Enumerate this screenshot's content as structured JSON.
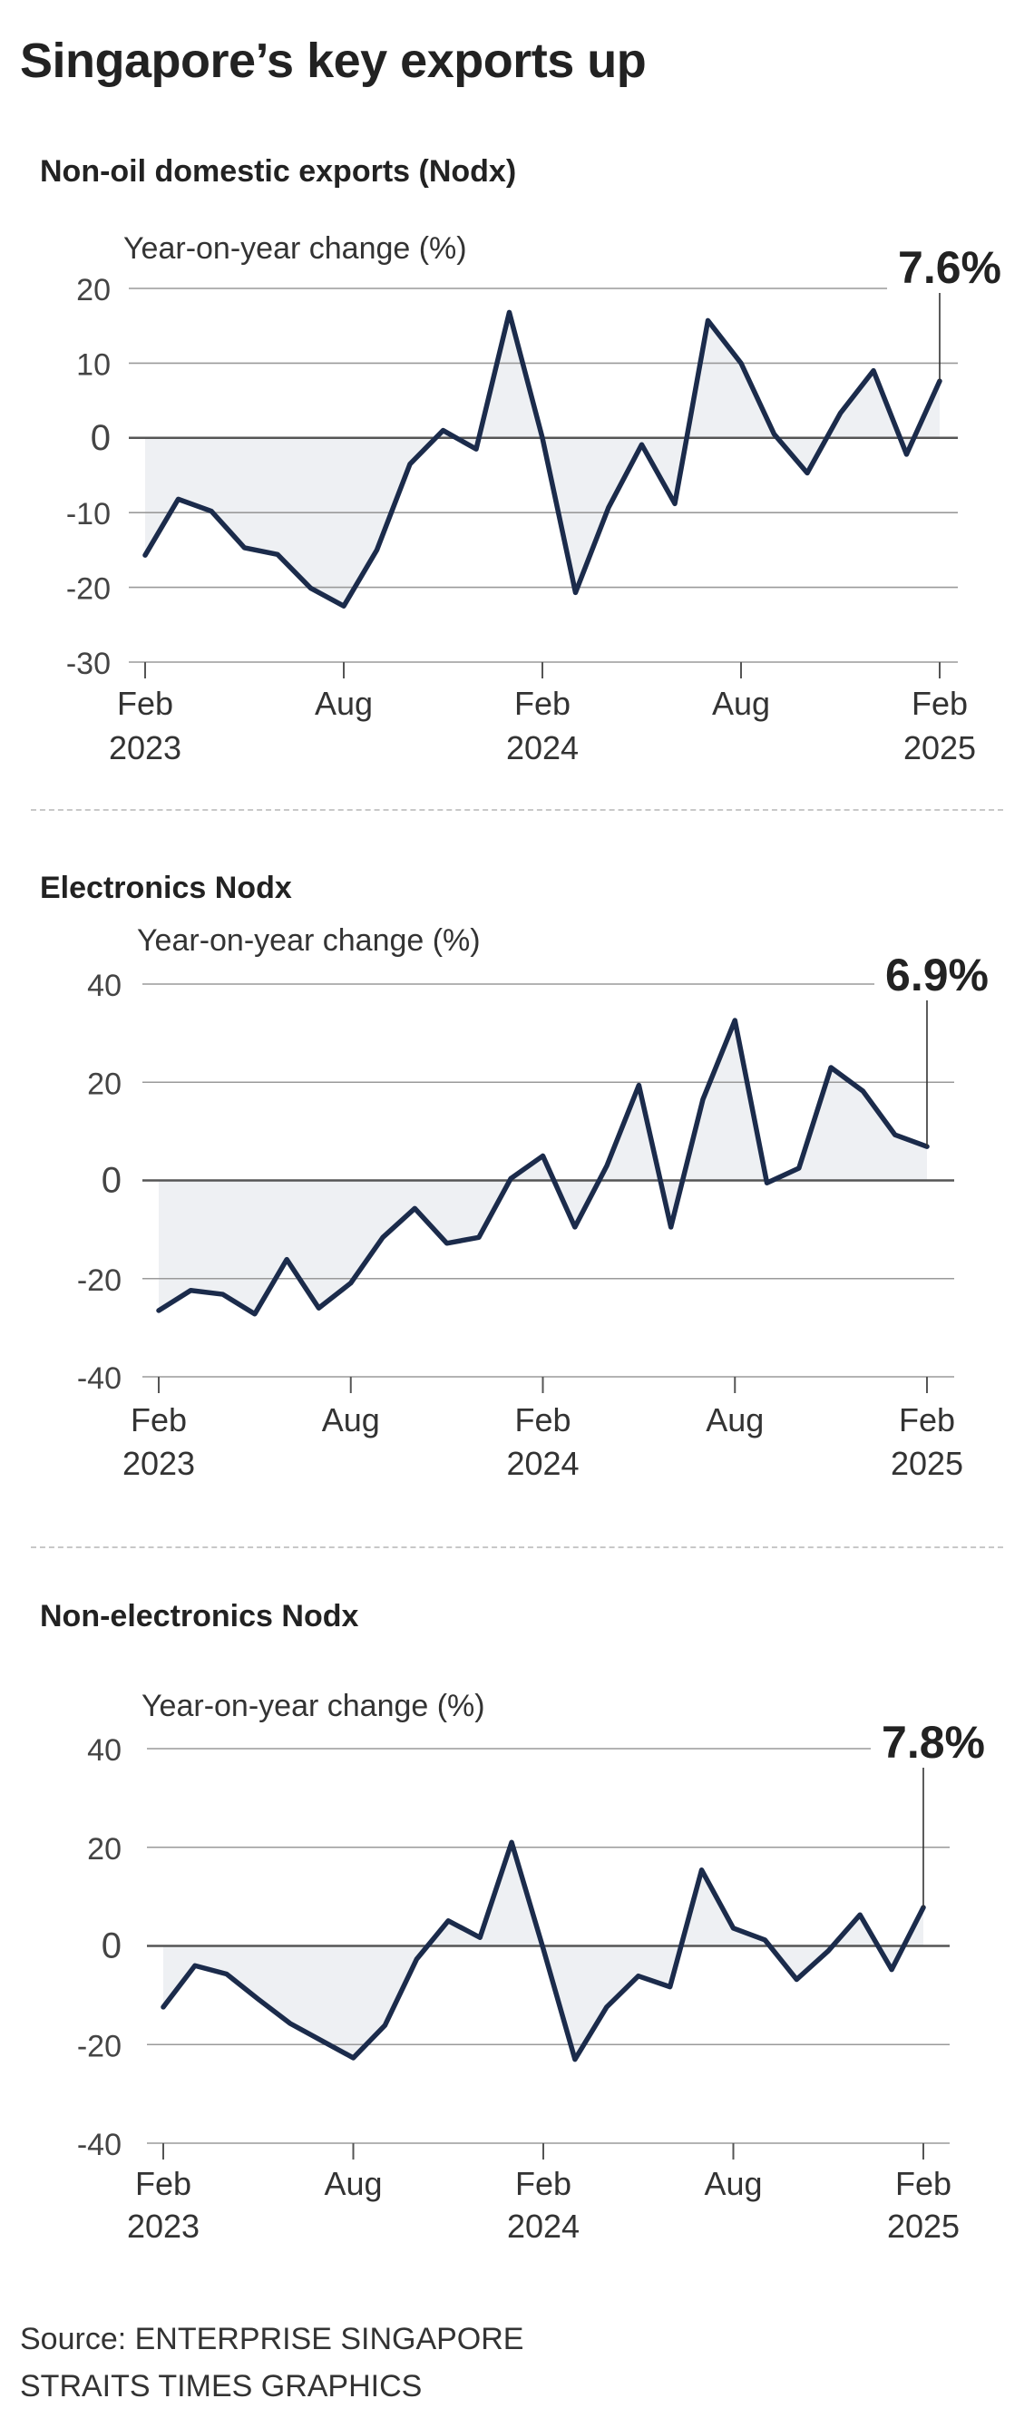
{
  "title": "Singapore’s key exports up",
  "source_line1": "Source: ENTERPRISE SINGAPORE",
  "source_line2": "STRAITS TIMES GRAPHICS",
  "colors": {
    "line": "#1b2b4b",
    "fill": "#eef0f3",
    "grid": "#9a9a9a",
    "zero": "#555555",
    "text": "#333333"
  },
  "chart_data": [
    {
      "type": "line",
      "panel": "Non-oil domestic exports (Nodx)",
      "ylabel": "Year-on-year change (%)",
      "ylim": [
        -30,
        20
      ],
      "yticks": [
        20,
        10,
        0,
        -10,
        -20,
        -30
      ],
      "x_tick_labels": [
        {
          "index": 0,
          "line1": "Feb",
          "line2": "2023"
        },
        {
          "index": 6,
          "line1": "Aug",
          "line2": ""
        },
        {
          "index": 12,
          "line1": "Feb",
          "line2": "2024"
        },
        {
          "index": 18,
          "line1": "Aug",
          "line2": ""
        },
        {
          "index": 24,
          "line1": "Feb",
          "line2": "2025"
        }
      ],
      "values": [
        -15.7,
        -8.2,
        -9.8,
        -14.7,
        -15.6,
        -20.1,
        -22.5,
        -15.0,
        -3.5,
        1.0,
        -1.5,
        16.8,
        0.0,
        -20.7,
        -9.3,
        -0.9,
        -8.8,
        15.7,
        10.0,
        0.5,
        -4.7,
        3.3,
        9.0,
        -2.2,
        7.6
      ],
      "annotation": "7.6%"
    },
    {
      "type": "line",
      "panel": "Electronics Nodx",
      "ylabel": "Year-on-year change (%)",
      "ylim": [
        -40,
        40
      ],
      "yticks": [
        40,
        20,
        0,
        -20,
        -40
      ],
      "x_tick_labels": [
        {
          "index": 0,
          "line1": "Feb",
          "line2": "2023"
        },
        {
          "index": 6,
          "line1": "Aug",
          "line2": ""
        },
        {
          "index": 12,
          "line1": "Feb",
          "line2": "2024"
        },
        {
          "index": 18,
          "line1": "Aug",
          "line2": ""
        },
        {
          "index": 24,
          "line1": "Feb",
          "line2": "2025"
        }
      ],
      "values": [
        -26.5,
        -22.4,
        -23.2,
        -27.2,
        -16.1,
        -26.0,
        -20.9,
        -11.6,
        -5.7,
        -12.8,
        -11.6,
        0.4,
        5.0,
        -9.5,
        3.0,
        19.4,
        -9.5,
        16.5,
        32.6,
        -0.5,
        2.5,
        23.0,
        18.2,
        9.3,
        6.9
      ],
      "annotation": "6.9%"
    },
    {
      "type": "line",
      "panel": "Non-electronics Nodx",
      "ylabel": "Year-on-year change (%)",
      "ylim": [
        -40,
        40
      ],
      "yticks": [
        40,
        20,
        0,
        -20,
        -40
      ],
      "x_tick_labels": [
        {
          "index": 0,
          "line1": "Feb",
          "line2": "2023"
        },
        {
          "index": 6,
          "line1": "Aug",
          "line2": ""
        },
        {
          "index": 12,
          "line1": "Feb",
          "line2": "2024"
        },
        {
          "index": 18,
          "line1": "Aug",
          "line2": ""
        },
        {
          "index": 24,
          "line1": "Feb",
          "line2": "2025"
        }
      ],
      "values": [
        -12.4,
        -4.0,
        -5.7,
        -10.8,
        -15.7,
        -19.2,
        -22.7,
        -16.1,
        -2.7,
        5.1,
        1.7,
        21.0,
        -0.6,
        -23.0,
        -12.4,
        -6.1,
        -8.3,
        15.4,
        3.6,
        1.2,
        -6.8,
        -1.0,
        6.3,
        -4.8,
        7.8
      ],
      "annotation": "7.8%"
    }
  ]
}
